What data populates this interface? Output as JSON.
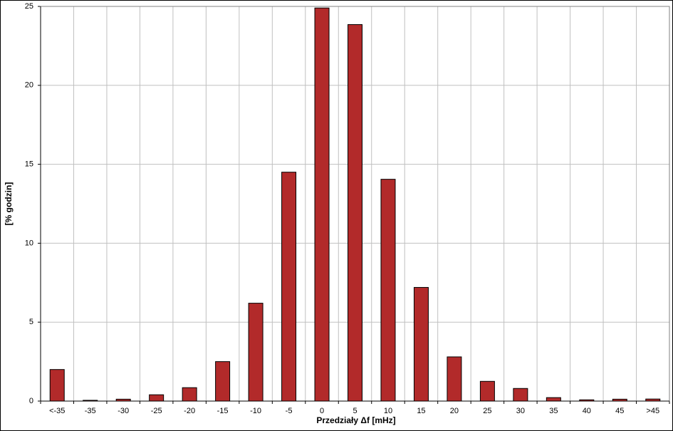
{
  "chart_data": {
    "type": "bar",
    "x_label": "Przedziały Δf [mHz]",
    "y_label": "[% godzin]",
    "categories": [
      "<-35",
      "-35",
      "-30",
      "-25",
      "-20",
      "-15",
      "-10",
      "-5",
      "0",
      "5",
      "10",
      "15",
      "20",
      "25",
      "30",
      "35",
      "40",
      "45",
      ">45"
    ],
    "values": [
      2.0,
      0.05,
      0.12,
      0.4,
      0.85,
      2.5,
      6.2,
      14.5,
      24.9,
      23.85,
      14.05,
      7.2,
      2.8,
      1.25,
      0.8,
      0.22,
      0.08,
      0.12,
      0.13
    ],
    "color": "#b22a2a",
    "ylim": [
      0,
      25
    ],
    "yticks": [
      0,
      5,
      10,
      15,
      20,
      25
    ],
    "grid": true
  }
}
